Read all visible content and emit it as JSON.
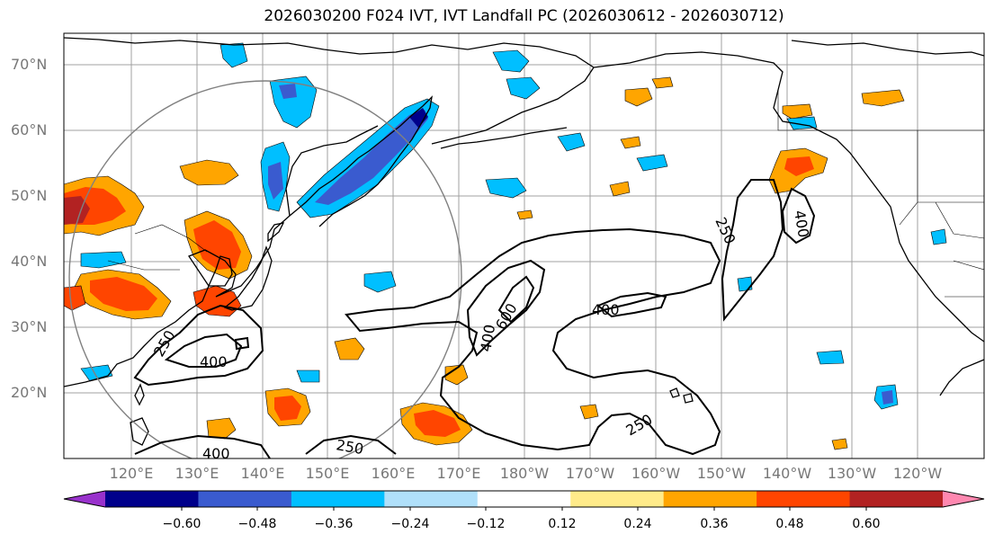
{
  "title": "2026030200 F024 IVT, IVT Landfall PC (2026030612 - 2026030712)",
  "lat_labels": [
    "70°N",
    "60°N",
    "50°N",
    "40°N",
    "30°N",
    "20°N"
  ],
  "lon_labels": [
    "120°E",
    "130°E",
    "140°E",
    "150°E",
    "160°E",
    "170°E",
    "180°W",
    "170°W",
    "160°W",
    "150°W",
    "140°W",
    "130°W",
    "120°W"
  ],
  "contour_labels": [
    "250",
    "400",
    "400",
    "400",
    "600",
    "400",
    "250",
    "250",
    "400",
    "250"
  ],
  "colorbar": {
    "tick_labels": [
      "−0.60",
      "−0.48",
      "−0.36",
      "−0.24",
      "−0.12",
      "0.12",
      "0.24",
      "0.36",
      "0.48",
      "0.60"
    ],
    "colors": [
      "#9932cc",
      "#00008b",
      "#3a5bcf",
      "#00bfff",
      "#b0e0fa",
      "#ffffff",
      "#ffeb8a",
      "#ffa500",
      "#ff4500",
      "#b22222",
      "#ff88b0"
    ]
  },
  "colors": {
    "grid": "#a0a0a0",
    "coast": "#000000",
    "contour": "#000000",
    "circle": "#808080"
  }
}
